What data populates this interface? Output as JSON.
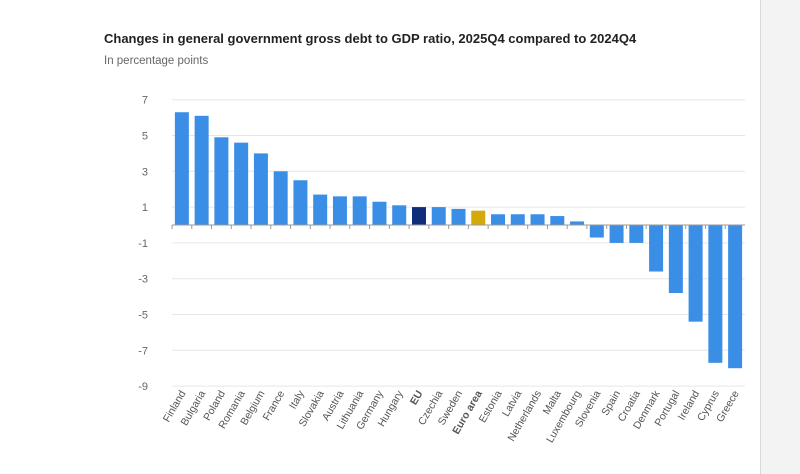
{
  "chart_data": {
    "type": "bar",
    "title": "Changes in general government gross debt to GDP ratio, 2025Q4 compared to 2024Q4",
    "subtitle": "In percentage points",
    "xlabel": "",
    "ylabel": "",
    "ylim": [
      -9,
      7
    ],
    "yticks": [
      7,
      5,
      3,
      1,
      -1,
      -3,
      -5,
      -7,
      -9
    ],
    "grid": true,
    "categories": [
      "Finland",
      "Bulgaria",
      "Poland",
      "Romania",
      "Belgium",
      "France",
      "Italy",
      "Slovakia",
      "Austria",
      "Lithuania",
      "Germany",
      "Hungary",
      "EU",
      "Czechia",
      "Sweden",
      "Euro area",
      "Estonia",
      "Latvia",
      "Netherlands",
      "Malta",
      "Luxembourg",
      "Slovenia",
      "Spain",
      "Croatia",
      "Denmark",
      "Portugal",
      "Ireland",
      "Cyprus",
      "Greece"
    ],
    "values": [
      6.3,
      6.1,
      4.9,
      4.6,
      4.0,
      3.0,
      2.5,
      1.7,
      1.6,
      1.6,
      1.3,
      1.1,
      1.0,
      1.0,
      0.9,
      0.8,
      0.6,
      0.6,
      0.6,
      0.5,
      0.2,
      -0.7,
      -1.0,
      -1.0,
      -2.6,
      -3.8,
      -5.4,
      -7.7,
      -8.0
    ],
    "bold_categories": [
      "EU",
      "Euro area"
    ],
    "colors": {
      "default": "#3a8ee6",
      "EU": "#0e2d7a",
      "Euro area": "#d4a90a"
    }
  }
}
